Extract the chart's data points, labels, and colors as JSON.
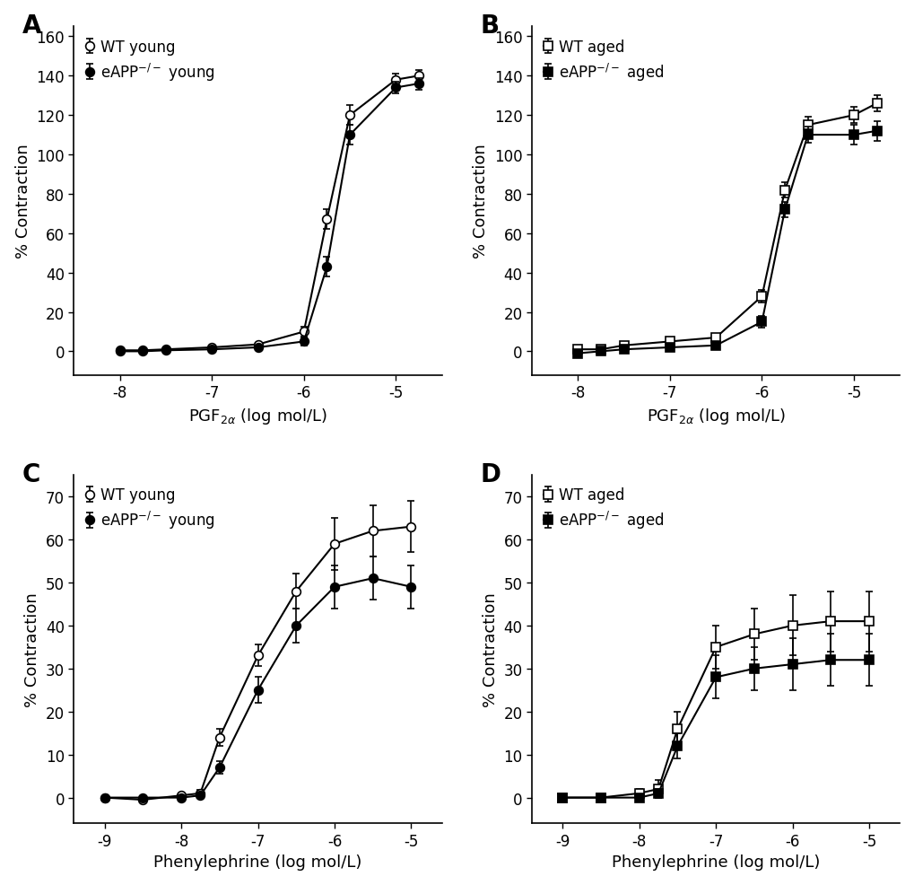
{
  "panel_A": {
    "title": "A",
    "xlabel": "PGF$_{2\\alpha}$ (log mol/L)",
    "ylabel": "% Contraction",
    "xlim": [
      -8.5,
      -4.5
    ],
    "ylim": [
      -12,
      165
    ],
    "yticks": [
      0,
      20,
      40,
      60,
      80,
      100,
      120,
      140,
      160
    ],
    "xticks": [
      -8,
      -7,
      -6,
      -5
    ],
    "series1": {
      "label": "WT young",
      "x": [
        -8,
        -7.75,
        -7.5,
        -7,
        -6.5,
        -6,
        -5.75,
        -5.5,
        -5,
        -4.75
      ],
      "y": [
        0.5,
        0.5,
        1,
        2,
        3.5,
        10,
        67,
        120,
        138,
        140
      ],
      "yerr": [
        0.5,
        0.5,
        0.8,
        0.8,
        1.0,
        2.5,
        5,
        5,
        3,
        3
      ],
      "marker": "o",
      "fillstyle": "none",
      "color": "black"
    },
    "series2": {
      "label": "eAPP$^{-/-}$ young",
      "x": [
        -8,
        -7.75,
        -7.5,
        -7,
        -6.5,
        -6,
        -5.75,
        -5.5,
        -5,
        -4.75
      ],
      "y": [
        0,
        0,
        0.5,
        1,
        2,
        5,
        43,
        110,
        134,
        136
      ],
      "yerr": [
        0.3,
        0.3,
        0.5,
        0.5,
        0.8,
        2,
        5,
        5,
        3,
        3
      ],
      "marker": "o",
      "fillstyle": "full",
      "color": "black"
    }
  },
  "panel_B": {
    "title": "B",
    "xlabel": "PGF$_{2\\alpha}$ (log mol/L)",
    "ylabel": "% Contraction",
    "xlim": [
      -8.5,
      -4.5
    ],
    "ylim": [
      -12,
      165
    ],
    "yticks": [
      0,
      20,
      40,
      60,
      80,
      100,
      120,
      140,
      160
    ],
    "xticks": [
      -8,
      -7,
      -6,
      -5
    ],
    "series1": {
      "label": "WT aged",
      "x": [
        -8,
        -7.75,
        -7.5,
        -7,
        -6.5,
        -6,
        -5.75,
        -5.5,
        -5,
        -4.75
      ],
      "y": [
        1,
        1,
        3,
        5,
        7,
        28,
        82,
        115,
        120,
        126
      ],
      "yerr": [
        1,
        1,
        1.5,
        2,
        2,
        3,
        4,
        4,
        4,
        4
      ],
      "marker": "s",
      "fillstyle": "none",
      "color": "black"
    },
    "series2": {
      "label": "eAPP$^{-/-}$ aged",
      "x": [
        -8,
        -7.75,
        -7.5,
        -7,
        -6.5,
        -6,
        -5.75,
        -5.5,
        -5,
        -4.75
      ],
      "y": [
        -1,
        0,
        1,
        2,
        3,
        15,
        72,
        110,
        110,
        112
      ],
      "yerr": [
        0.5,
        0.5,
        0.8,
        1,
        1.5,
        3,
        4,
        4,
        5,
        5
      ],
      "marker": "s",
      "fillstyle": "full",
      "color": "black"
    }
  },
  "panel_C": {
    "title": "C",
    "xlabel": "Phenylephrine (log mol/L)",
    "ylabel": "% Contraction",
    "xlim": [
      -9.4,
      -4.6
    ],
    "ylim": [
      -6,
      75
    ],
    "yticks": [
      0,
      10,
      20,
      30,
      40,
      50,
      60,
      70
    ],
    "xticks": [
      -9,
      -8,
      -7,
      -6,
      -5
    ],
    "series1": {
      "label": "WT young",
      "x": [
        -9,
        -8.5,
        -8,
        -7.75,
        -7.5,
        -7,
        -6.5,
        -6,
        -5.5,
        -5
      ],
      "y": [
        0,
        -0.5,
        0.5,
        1,
        14,
        33,
        48,
        59,
        62,
        63
      ],
      "yerr": [
        0.3,
        0.3,
        0.5,
        0.8,
        2,
        2.5,
        4,
        6,
        6,
        6
      ],
      "marker": "o",
      "fillstyle": "none",
      "color": "black"
    },
    "series2": {
      "label": "eAPP$^{-/-}$ young",
      "x": [
        -9,
        -8.5,
        -8,
        -7.75,
        -7.5,
        -7,
        -6.5,
        -6,
        -5.5,
        -5
      ],
      "y": [
        0,
        0,
        0,
        0.5,
        7,
        25,
        40,
        49,
        51,
        49
      ],
      "yerr": [
        0.3,
        0.3,
        0.5,
        0.5,
        1.5,
        3,
        4,
        5,
        5,
        5
      ],
      "marker": "o",
      "fillstyle": "full",
      "color": "black"
    }
  },
  "panel_D": {
    "title": "D",
    "xlabel": "Phenylephrine (log mol/L)",
    "ylabel": "% Contraction",
    "xlim": [
      -9.4,
      -4.6
    ],
    "ylim": [
      -6,
      75
    ],
    "yticks": [
      0,
      10,
      20,
      30,
      40,
      50,
      60,
      70
    ],
    "xticks": [
      -9,
      -8,
      -7,
      -6,
      -5
    ],
    "series1": {
      "label": "WT aged",
      "x": [
        -9,
        -8.5,
        -8,
        -7.75,
        -7.5,
        -7,
        -6.5,
        -6,
        -5.5,
        -5
      ],
      "y": [
        0,
        0,
        1,
        2,
        16,
        35,
        38,
        40,
        41,
        41
      ],
      "yerr": [
        0.5,
        0.5,
        1,
        2,
        4,
        5,
        6,
        7,
        7,
        7
      ],
      "marker": "s",
      "fillstyle": "none",
      "color": "black"
    },
    "series2": {
      "label": "eAPP$^{-/-}$ aged",
      "x": [
        -9,
        -8.5,
        -8,
        -7.75,
        -7.5,
        -7,
        -6.5,
        -6,
        -5.5,
        -5
      ],
      "y": [
        0,
        0,
        0,
        1,
        12,
        28,
        30,
        31,
        32,
        32
      ],
      "yerr": [
        0.3,
        0.3,
        0.5,
        1,
        3,
        5,
        5,
        6,
        6,
        6
      ],
      "marker": "s",
      "fillstyle": "full",
      "color": "black"
    }
  },
  "marker_size": 7,
  "linewidth": 1.5,
  "capsize": 3,
  "elinewidth": 1.2,
  "label_fontsize": 13,
  "tick_fontsize": 12,
  "panel_label_fontsize": 20,
  "legend_fontsize": 12
}
